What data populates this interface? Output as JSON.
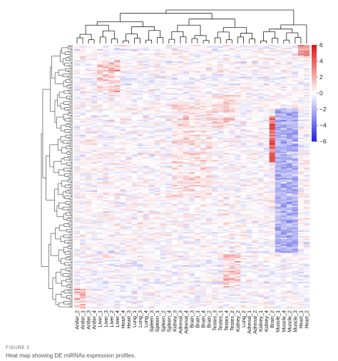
{
  "caption": {
    "label": "FIGURE 2",
    "text": "Heat map showing DE miRNAs expression profiles."
  },
  "chart_data": {
    "type": "heatmap",
    "title": "",
    "xlabel": "",
    "ylabel": "",
    "columns": [
      "Antler_2",
      "Antler_1",
      "Antler_3",
      "Antler_4",
      "Liver_1",
      "Liver_3",
      "Liver_2",
      "Liver_4",
      "Heart_4",
      "Heart_3",
      "Lung_1",
      "Lung_3",
      "Lung_4",
      "Spleen_3",
      "Spleen_1",
      "Spleen_2",
      "Spleen_4",
      "Kidney_3",
      "Adrenal_3",
      "Adrenal_4",
      "Brain_3",
      "Brain_1",
      "Brain_4",
      "Brain_2",
      "Testes_3",
      "Testes_1",
      "Testes_4",
      "Testes_2",
      "Kidney_2",
      "Lung_2",
      "Adrenal_1",
      "Adrenal_2",
      "Kidney_1",
      "Kidney_4",
      "Brain_2",
      "Muscle_1",
      "Muscle_4",
      "Muscle_2",
      "Muscle_3",
      "Heart_1",
      "Heart_2"
    ],
    "colorbar": {
      "ticks": [
        6,
        4,
        2,
        0,
        -2,
        -4,
        -6
      ],
      "range": [
        -6,
        6
      ],
      "colors": {
        "low": "#2222dd",
        "mid": "#ffffff",
        "high": "#dd1111"
      }
    },
    "row_dendrogram_color": "#555555",
    "column_dendrogram_color": "#222222",
    "grid": false,
    "legend_position": "right"
  }
}
